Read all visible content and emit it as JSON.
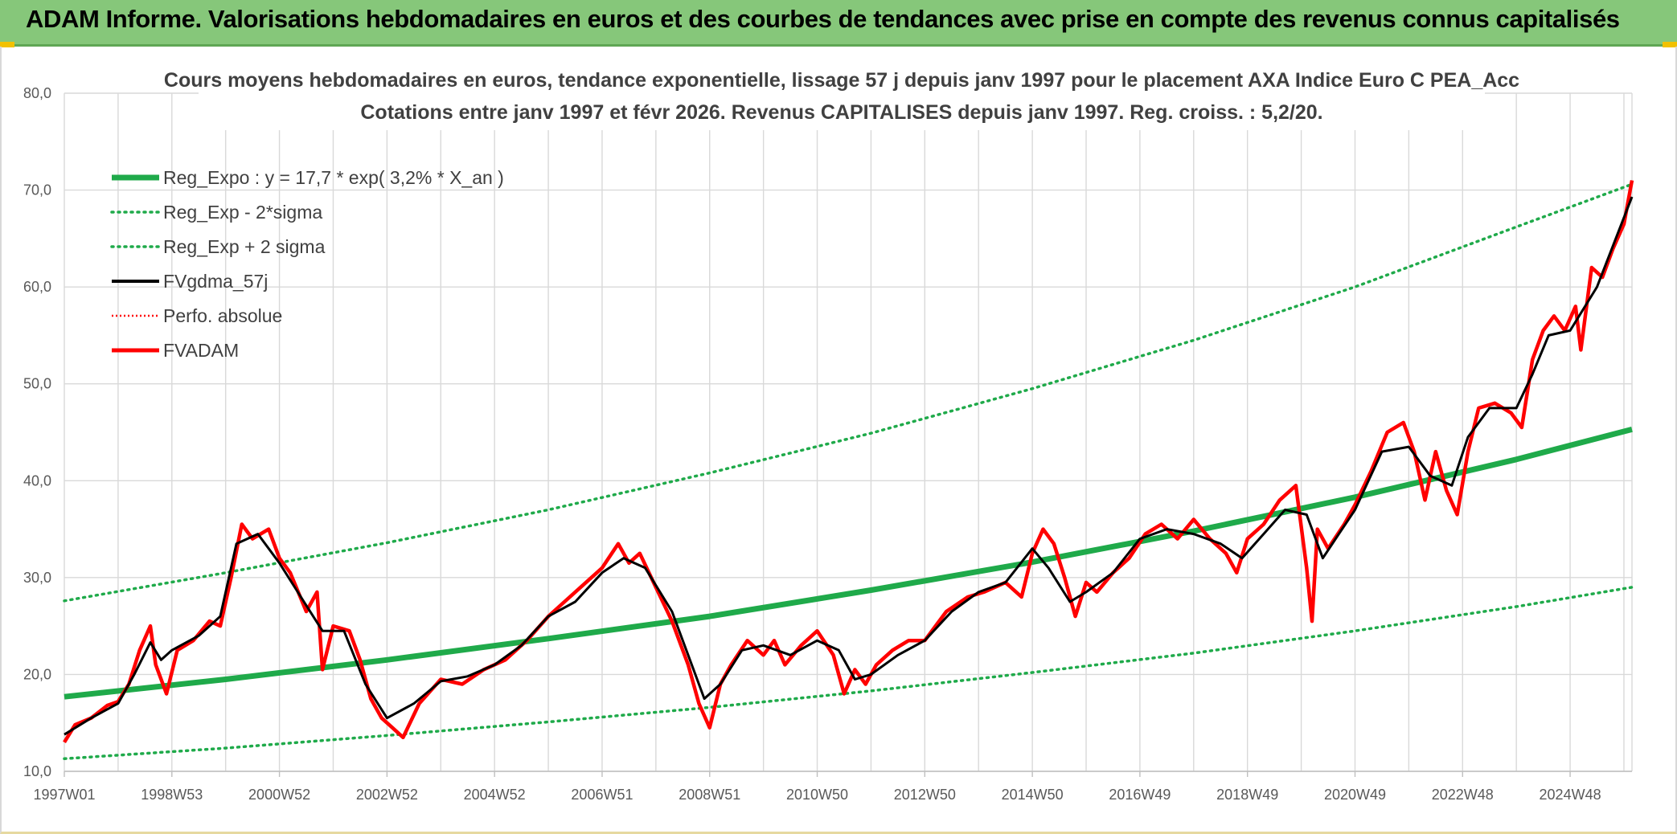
{
  "header": {
    "title": "ADAM Informe. Valorisations hebdomadaires en euros et des courbes de tendances avec prise en compte des revenus connus capitalisés"
  },
  "colors": {
    "banner": "#86c77a",
    "reg": "#1faa4a",
    "sigma": "#1faa4a",
    "fvgdma": "#000000",
    "fvadam": "#ff0000",
    "perfo": "#ff0000",
    "grid": "#d9d9d9"
  },
  "chart_data": {
    "type": "line",
    "title": "Cours moyens hebdomadaires en euros, tendance exponentielle, lissage 57 j depuis janv 1997 pour le placement AXA Indice Euro C PEA_Acc",
    "subtitle": "Cotations entre janv 1997 et févr 2026. Revenus CAPITALISES depuis janv 1997. Reg. croiss. : 5,2/20.",
    "ylim": [
      10,
      80
    ],
    "xlim": [
      1997.0,
      2026.15
    ],
    "grid": true,
    "legend_position": "top-left",
    "y_ticks": [
      "10,0",
      "20,0",
      "30,0",
      "40,0",
      "50,0",
      "60,0",
      "70,0",
      "80,0"
    ],
    "x_ticks": [
      {
        "label": "1997W01",
        "x": 1997.0
      },
      {
        "label": "1998W53",
        "x": 1999.0
      },
      {
        "label": "2000W52",
        "x": 2001.0
      },
      {
        "label": "2002W52",
        "x": 2003.0
      },
      {
        "label": "2004W52",
        "x": 2005.0
      },
      {
        "label": "2006W51",
        "x": 2007.0
      },
      {
        "label": "2008W51",
        "x": 2009.0
      },
      {
        "label": "2010W50",
        "x": 2011.0
      },
      {
        "label": "2012W50",
        "x": 2013.0
      },
      {
        "label": "2014W50",
        "x": 2015.0
      },
      {
        "label": "2016W49",
        "x": 2017.0
      },
      {
        "label": "2018W49",
        "x": 2019.0
      },
      {
        "label": "2020W49",
        "x": 2021.0
      },
      {
        "label": "2022W48",
        "x": 2023.0
      },
      {
        "label": "2024W48",
        "x": 2025.0
      }
    ],
    "series": [
      {
        "name": "Reg_Expo : y = 17,7 * exp( 3,2% *  X_an )",
        "style": "solid-thick",
        "x": [
          1997.0,
          2000.0,
          2003.0,
          2006.0,
          2009.0,
          2012.0,
          2015.0,
          2018.0,
          2021.0,
          2024.0,
          2026.15
        ],
        "y": [
          17.7,
          19.5,
          21.5,
          23.7,
          26.0,
          28.7,
          31.6,
          34.8,
          38.3,
          42.2,
          45.3
        ]
      },
      {
        "name": "Reg_Exp - 2*sigma",
        "style": "dotted",
        "x": [
          1997.0,
          2000.0,
          2003.0,
          2006.0,
          2009.0,
          2012.0,
          2015.0,
          2018.0,
          2021.0,
          2024.0,
          2026.15
        ],
        "y": [
          11.3,
          12.4,
          13.7,
          15.1,
          16.6,
          18.3,
          20.2,
          22.2,
          24.5,
          27.0,
          29.0
        ]
      },
      {
        "name": "Reg_Exp + 2 sigma",
        "style": "dotted",
        "x": [
          1997.0,
          2000.0,
          2003.0,
          2006.0,
          2009.0,
          2012.0,
          2015.0,
          2018.0,
          2021.0,
          2024.0,
          2026.15
        ],
        "y": [
          27.6,
          30.5,
          33.6,
          37.0,
          40.8,
          44.9,
          49.5,
          54.5,
          60.0,
          66.2,
          70.6
        ]
      },
      {
        "name": "FVgdma_57j",
        "style": "solid",
        "x": [
          1997.0,
          1997.5,
          1998.0,
          1998.3,
          1998.6,
          1998.8,
          1999.0,
          1999.5,
          1999.9,
          2000.2,
          2000.6,
          2001.0,
          2001.4,
          2001.8,
          2002.2,
          2002.6,
          2003.0,
          2003.5,
          2004.0,
          2004.5,
          2005.0,
          2005.5,
          2006.0,
          2006.5,
          2007.0,
          2007.4,
          2007.8,
          2008.3,
          2008.6,
          2008.9,
          2009.2,
          2009.6,
          2010.0,
          2010.5,
          2011.0,
          2011.4,
          2011.7,
          2012.0,
          2012.5,
          2013.0,
          2013.5,
          2014.0,
          2014.5,
          2015.0,
          2015.3,
          2015.7,
          2016.0,
          2016.5,
          2017.0,
          2017.5,
          2018.0,
          2018.5,
          2018.9,
          2019.3,
          2019.7,
          2020.1,
          2020.4,
          2020.7,
          2021.0,
          2021.5,
          2022.0,
          2022.4,
          2022.8,
          2023.1,
          2023.5,
          2024.0,
          2024.3,
          2024.6,
          2025.0,
          2025.5,
          2026.15
        ],
        "y": [
          13.8,
          15.5,
          17.0,
          20.0,
          23.3,
          21.5,
          22.5,
          24.0,
          26.0,
          33.5,
          34.5,
          31.5,
          28.0,
          24.5,
          24.5,
          19.0,
          15.5,
          17.0,
          19.3,
          19.8,
          21.0,
          23.0,
          26.0,
          27.5,
          30.5,
          32.0,
          31.0,
          26.5,
          22.0,
          17.5,
          19.0,
          22.5,
          23.0,
          22.0,
          23.5,
          22.5,
          19.5,
          20.0,
          22.0,
          23.5,
          26.5,
          28.5,
          29.5,
          33.0,
          31.0,
          27.5,
          28.5,
          30.5,
          34.0,
          35.0,
          34.5,
          33.5,
          32.0,
          34.5,
          37.0,
          36.5,
          32.0,
          34.5,
          37.0,
          43.0,
          43.5,
          40.5,
          39.5,
          44.5,
          47.5,
          47.5,
          51.0,
          55.0,
          55.5,
          60.0,
          69.3
        ]
      },
      {
        "name": "Perfo. absolue",
        "style": "dotted",
        "x": [],
        "y": []
      },
      {
        "name": "FVADAM",
        "style": "solid-thick",
        "x": [
          1997.0,
          1997.2,
          1997.5,
          1997.8,
          1998.0,
          1998.2,
          1998.4,
          1998.6,
          1998.7,
          1998.9,
          1999.1,
          1999.4,
          1999.7,
          1999.9,
          2000.1,
          2000.3,
          2000.5,
          2000.8,
          2001.0,
          2001.2,
          2001.5,
          2001.7,
          2001.8,
          2002.0,
          2002.3,
          2002.5,
          2002.7,
          2002.9,
          2003.1,
          2003.3,
          2003.6,
          2004.0,
          2004.4,
          2004.8,
          2005.2,
          2005.6,
          2006.0,
          2006.3,
          2006.6,
          2007.0,
          2007.3,
          2007.5,
          2007.7,
          2008.0,
          2008.3,
          2008.6,
          2008.8,
          2009.0,
          2009.2,
          2009.4,
          2009.7,
          2010.0,
          2010.2,
          2010.4,
          2010.7,
          2011.0,
          2011.3,
          2011.5,
          2011.7,
          2011.9,
          2012.1,
          2012.4,
          2012.7,
          2013.0,
          2013.4,
          2013.8,
          2014.1,
          2014.5,
          2014.8,
          2015.0,
          2015.2,
          2015.4,
          2015.6,
          2015.8,
          2016.0,
          2016.2,
          2016.5,
          2016.8,
          2017.1,
          2017.4,
          2017.7,
          2018.0,
          2018.3,
          2018.6,
          2018.8,
          2019.0,
          2019.3,
          2019.6,
          2019.9,
          2020.1,
          2020.2,
          2020.3,
          2020.5,
          2020.8,
          2021.0,
          2021.3,
          2021.6,
          2021.9,
          2022.1,
          2022.3,
          2022.5,
          2022.7,
          2022.9,
          2023.1,
          2023.3,
          2023.6,
          2023.9,
          2024.1,
          2024.3,
          2024.5,
          2024.7,
          2024.9,
          2025.1,
          2025.2,
          2025.4,
          2025.6,
          2025.8,
          2026.0,
          2026.15
        ],
        "y": [
          13.0,
          14.8,
          15.5,
          16.8,
          17.2,
          19.0,
          22.5,
          25.0,
          21.0,
          18.0,
          22.5,
          23.5,
          25.5,
          25.0,
          30.0,
          35.5,
          34.0,
          35.0,
          32.0,
          30.5,
          26.5,
          28.5,
          20.5,
          25.0,
          24.5,
          21.5,
          17.5,
          15.5,
          14.5,
          13.5,
          17.0,
          19.5,
          19.0,
          20.5,
          21.5,
          23.5,
          26.0,
          27.5,
          29.0,
          31.0,
          33.5,
          31.5,
          32.5,
          29.0,
          25.5,
          21.0,
          17.0,
          14.5,
          19.0,
          21.0,
          23.5,
          22.0,
          23.5,
          21.0,
          23.0,
          24.5,
          22.0,
          18.0,
          20.5,
          19.0,
          21.0,
          22.5,
          23.5,
          23.5,
          26.5,
          28.0,
          28.5,
          29.5,
          28.0,
          32.5,
          35.0,
          33.5,
          30.0,
          26.0,
          29.5,
          28.5,
          30.5,
          32.0,
          34.5,
          35.5,
          34.0,
          36.0,
          34.0,
          32.5,
          30.5,
          34.0,
          35.5,
          38.0,
          39.5,
          31.0,
          25.5,
          35.0,
          33.0,
          35.5,
          37.5,
          41.0,
          45.0,
          46.0,
          43.0,
          38.0,
          43.0,
          39.0,
          36.5,
          43.0,
          47.5,
          48.0,
          47.0,
          45.5,
          52.5,
          55.5,
          57.0,
          55.5,
          58.0,
          53.5,
          62.0,
          61.0,
          64.0,
          66.5,
          71.0
        ]
      }
    ]
  }
}
